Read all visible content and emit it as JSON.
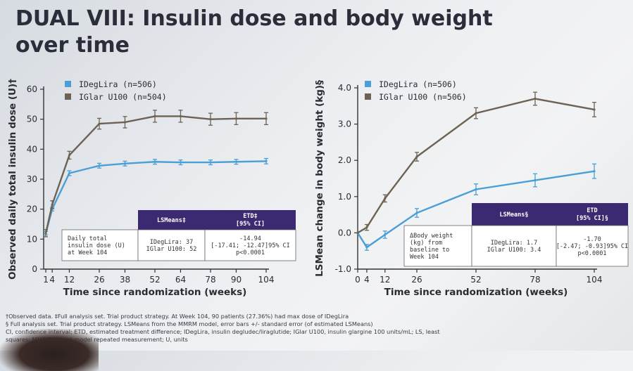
{
  "slide": {
    "title_line1": "DUAL VIII: Insulin dose and body weight",
    "title_line2": "over time",
    "footnotes": [
      "†Observed data. ‡Full analysis set. Trial product strategy. At Week 104, 90 patients (27.36%) had max dose of IDegLira",
      "§ Full analysis set. Trial product strategy. LSMeans from the MMRM model, error bars +/- standard error (of estimated LSMeans)",
      "CI, confidence interval; ETD, estimated treatment difference; IDegLira, insulin degludec/liraglutide; IGlar U100, insulin glargine 100 units/mL; LS, least",
      "squares; MMRM, mixed model repeated measurement; U, units"
    ]
  },
  "colors": {
    "idegLira": "#4a9fd6",
    "iglar": "#6d6253",
    "table_header": "#3b2a72"
  },
  "chart_data": [
    {
      "type": "line",
      "xlabel": "Time since randomization (weeks)",
      "ylabel": "Observed daily total insulin dose (U)†",
      "xlim": [
        0,
        104
      ],
      "ylim": [
        0,
        60
      ],
      "x_ticks": [
        1,
        4,
        12,
        26,
        38,
        52,
        64,
        78,
        90,
        104
      ],
      "x_tick_labels": [
        "1",
        "4",
        "12",
        "26",
        "38",
        "52",
        "64",
        "78",
        "90",
        "104"
      ],
      "y_ticks": [
        0,
        10,
        20,
        30,
        40,
        50,
        60
      ],
      "y_tick_labels": [
        "0",
        "10",
        "20",
        "30",
        "40",
        "50",
        "60"
      ],
      "grid": false,
      "legend_position": "top-left",
      "series": [
        {
          "name": "IDegLira (n=506)",
          "color": "#4a9fd6",
          "x": [
            1,
            4,
            12,
            26,
            38,
            52,
            64,
            78,
            90,
            104
          ],
          "y": [
            12,
            20,
            32,
            34.5,
            35.2,
            35.8,
            35.6,
            35.6,
            35.8,
            36
          ],
          "err": [
            0.6,
            0.6,
            0.8,
            0.8,
            0.8,
            0.8,
            0.8,
            0.8,
            0.8,
            0.9
          ]
        },
        {
          "name": "IGlar U100 (n=504)",
          "color": "#6d6253",
          "x": [
            1,
            4,
            12,
            26,
            38,
            52,
            64,
            78,
            90,
            104
          ],
          "y": [
            12,
            21.5,
            38,
            48.5,
            49,
            51,
            51,
            50,
            50.2,
            50.2
          ],
          "err": [
            1.2,
            1.3,
            1.3,
            1.8,
            1.9,
            2.0,
            2.0,
            2.0,
            2.0,
            2.0
          ]
        }
      ],
      "table": {
        "header_lsmeans": "LSMeans‡",
        "header_etd_line1": "ETD‡",
        "header_etd_line2": "[95% CI]",
        "row_label": [
          "Daily total",
          "insulin dose (U)",
          "at Week 104"
        ],
        "lsmeans_values": [
          "IDegLira: 37",
          "IGlar U100: 52"
        ],
        "etd_values": [
          "-14.94",
          "[-17.41; -12.47]95% CI",
          "p<0.0001"
        ]
      }
    },
    {
      "type": "line",
      "xlabel": "Time since randomization (weeks)",
      "ylabel": "LSMean change in body weight (kg)§",
      "xlim": [
        0,
        104
      ],
      "ylim": [
        -1.0,
        4.0
      ],
      "x_ticks": [
        0,
        4,
        12,
        26,
        52,
        78,
        104
      ],
      "x_tick_labels": [
        "0",
        "4",
        "12",
        "26",
        "52",
        "78",
        "104"
      ],
      "y_ticks": [
        -1.0,
        0.0,
        1.0,
        2.0,
        3.0,
        4.0
      ],
      "y_tick_labels": [
        "-1.0",
        "0.0",
        "1.0",
        "2.0",
        "3.0",
        "4.0"
      ],
      "grid": false,
      "legend_position": "top-left",
      "series": [
        {
          "name": "IDegLira (n=506)",
          "color": "#4a9fd6",
          "x": [
            0,
            4,
            12,
            26,
            52,
            78,
            104
          ],
          "y": [
            0,
            -0.4,
            -0.05,
            0.55,
            1.2,
            1.45,
            1.7
          ],
          "err": [
            0,
            0.08,
            0.1,
            0.12,
            0.15,
            0.18,
            0.2
          ]
        },
        {
          "name": "IGlar U100 (n=506)",
          "color": "#6d6253",
          "x": [
            0,
            4,
            12,
            26,
            52,
            78,
            104
          ],
          "y": [
            0,
            0.15,
            0.95,
            2.1,
            3.3,
            3.7,
            3.4
          ],
          "err": [
            0,
            0.08,
            0.1,
            0.12,
            0.15,
            0.18,
            0.2
          ]
        }
      ],
      "table": {
        "header_lsmeans": "LSMeans§",
        "header_etd_line1": "ETD",
        "header_etd_line2": "[95% CI]§",
        "row_label": [
          "ΔBody weight",
          "(kg) from",
          "baseline to",
          "Week 104"
        ],
        "lsmeans_values": [
          "IDegLira: 1.7",
          "IGlar U100: 3.4"
        ],
        "etd_values": [
          "-1.70",
          "[-2.47; -0.93]95% CI",
          "p<0.0001"
        ]
      }
    }
  ]
}
